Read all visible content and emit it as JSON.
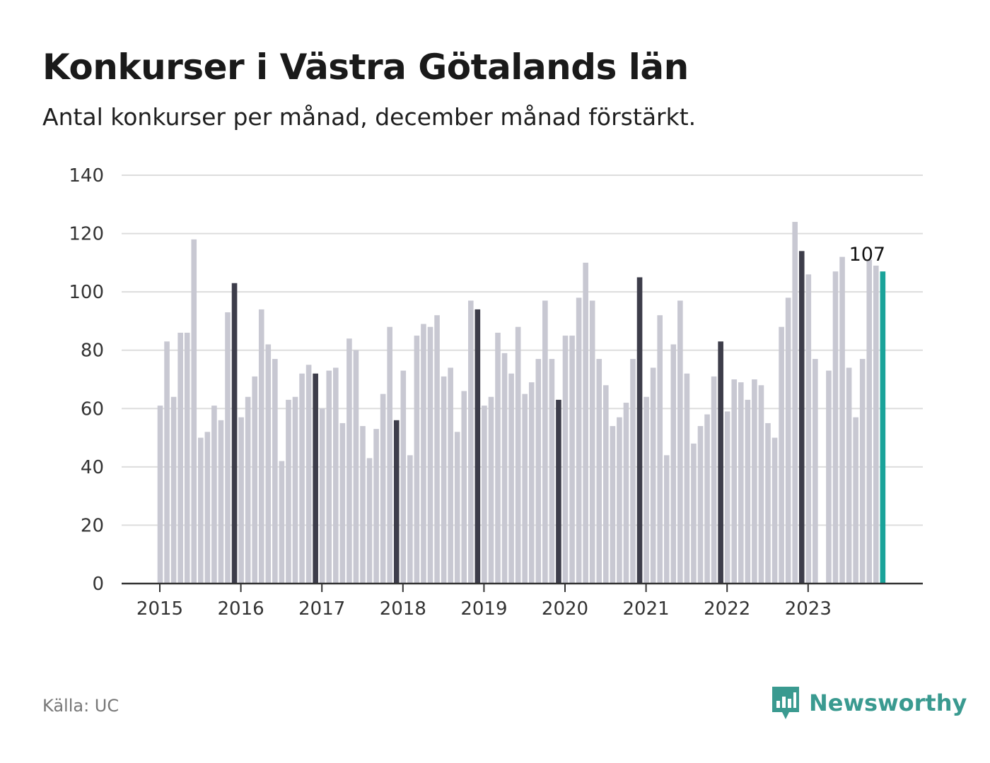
{
  "header": {
    "title": "Konkurser i Västra Götalands län",
    "subtitle": "Antal konkurser per månad, december månad förstärkt."
  },
  "footer": {
    "source": "Källa: UC",
    "brand": "Newsworthy",
    "brand_icon": "bar-chart-badge-icon"
  },
  "colors": {
    "bar": "#c8c8d2",
    "december": "#3d3d4a",
    "latest": "#1aa39a",
    "grid": "#dddddd",
    "axis": "#333333",
    "brand": "#3a9a90"
  },
  "chart_data": {
    "type": "bar",
    "title": "Konkurser i Västra Götalands län",
    "subtitle": "Antal konkurser per månad, december månad förstärkt.",
    "xlabel": "",
    "ylabel": "",
    "ylim": [
      0,
      140
    ],
    "yticks": [
      0,
      20,
      40,
      60,
      80,
      100,
      120,
      140
    ],
    "xticks": [
      "2015",
      "2016",
      "2017",
      "2018",
      "2019",
      "2020",
      "2021",
      "2022",
      "2023"
    ],
    "grid": true,
    "legend": "none",
    "start_month": "2015-01",
    "end_month": "2023-12",
    "values": [
      61,
      83,
      64,
      86,
      86,
      118,
      50,
      52,
      61,
      56,
      93,
      103,
      57,
      64,
      71,
      94,
      82,
      77,
      42,
      63,
      64,
      72,
      75,
      72,
      60,
      73,
      74,
      55,
      84,
      80,
      54,
      43,
      53,
      65,
      88,
      56,
      73,
      44,
      85,
      89,
      88,
      92,
      71,
      74,
      52,
      66,
      97,
      94,
      61,
      64,
      86,
      79,
      72,
      88,
      65,
      69,
      77,
      97,
      77,
      63,
      85,
      85,
      98,
      110,
      97,
      77,
      68,
      54,
      57,
      62,
      77,
      105,
      64,
      74,
      92,
      44,
      82,
      97,
      72,
      48,
      54,
      58,
      71,
      83,
      59,
      70,
      69,
      63,
      70,
      68,
      55,
      50,
      88,
      98,
      124,
      114,
      106,
      77,
      0,
      73,
      107,
      112,
      74,
      57,
      77,
      111,
      109,
      107
    ],
    "highlight": "december",
    "annotations": [
      {
        "month": "2023-12",
        "value": 107,
        "label": "107"
      }
    ]
  }
}
